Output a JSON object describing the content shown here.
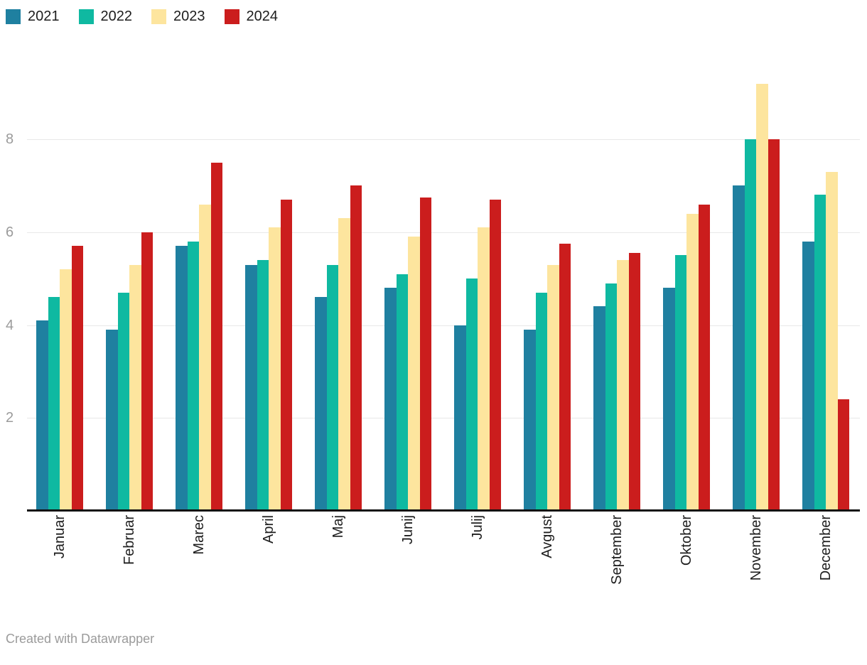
{
  "chart_data": {
    "type": "bar",
    "title": "",
    "xlabel": "",
    "ylabel": "",
    "categories": [
      "Januar",
      "Februar",
      "Marec",
      "April",
      "Maj",
      "Junij",
      "Julij",
      "Avgust",
      "September",
      "Oktober",
      "November",
      "December"
    ],
    "series": [
      {
        "name": "2021",
        "color": "#1f80a0",
        "values": [
          4.1,
          3.9,
          5.7,
          5.3,
          4.6,
          4.8,
          4.0,
          3.9,
          4.4,
          4.8,
          7.0,
          5.8
        ]
      },
      {
        "name": "2022",
        "color": "#0fb9a1",
        "values": [
          4.6,
          4.7,
          5.8,
          5.4,
          5.3,
          5.1,
          5.0,
          4.7,
          4.9,
          5.5,
          8.0,
          6.8
        ]
      },
      {
        "name": "2023",
        "color": "#fde59e",
        "values": [
          5.2,
          5.3,
          6.6,
          6.1,
          6.3,
          5.9,
          6.1,
          5.3,
          5.4,
          6.4,
          9.2,
          7.3
        ]
      },
      {
        "name": "2024",
        "color": "#cb1d1d",
        "values": [
          5.7,
          6.0,
          7.5,
          6.7,
          7.0,
          6.75,
          6.7,
          5.75,
          5.55,
          6.6,
          8.0,
          2.4
        ]
      }
    ],
    "yticks": [
      2,
      4,
      6,
      8
    ],
    "ylim": [
      0,
      9.3
    ],
    "grid": true,
    "legend_position": "top-left"
  },
  "footer": {
    "credit": "Created with Datawrapper"
  },
  "colors": {
    "background": "#ffffff",
    "gridline": "#e8e8e8",
    "axis_line": "#111111",
    "ytick_label": "#9b9b9b",
    "month_label": "#1d1d1d",
    "legend_label": "#1d1d1d",
    "footer_text": "#9b9b9b"
  }
}
